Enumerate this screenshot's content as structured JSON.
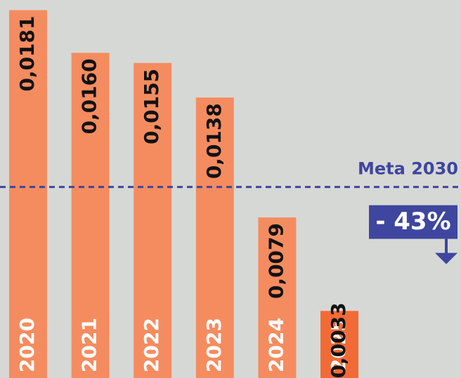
{
  "chart_data": {
    "type": "bar",
    "categories": [
      "2020",
      "2021",
      "2022",
      "2023",
      "2024",
      "2025"
    ],
    "values": [
      0.0181,
      0.016,
      0.0155,
      0.0138,
      0.0079,
      0.0033
    ],
    "value_labels": [
      "0,0181",
      "0,0160",
      "0,0155",
      "0,0138",
      "0,0079",
      "0,0033"
    ],
    "colors": [
      "#f58c60",
      "#f58c60",
      "#f58c60",
      "#f58c60",
      "#f58c60",
      "#f26b36"
    ],
    "ylim": [
      0,
      0.0186
    ],
    "target": {
      "label": "Meta 2030",
      "value": 0.0094,
      "change_label": "- 43%",
      "color": "#3e469f"
    }
  }
}
